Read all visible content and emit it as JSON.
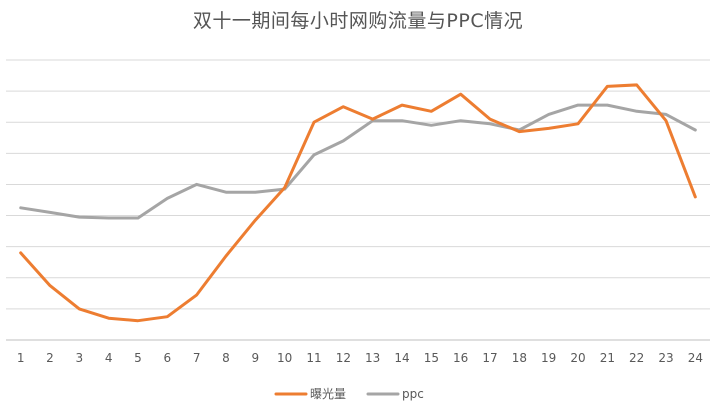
{
  "chart_data": {
    "type": "line",
    "title": "双十一期间每小时网购流量与PPC情况",
    "categories": [
      "1",
      "2",
      "3",
      "4",
      "5",
      "6",
      "7",
      "8",
      "9",
      "10",
      "11",
      "12",
      "13",
      "14",
      "15",
      "16",
      "17",
      "18",
      "19",
      "20",
      "21",
      "22",
      "23",
      "24"
    ],
    "series": [
      {
        "name": "曝光量",
        "color": "#ED7D31",
        "values": [
          2.8,
          1.75,
          1.0,
          0.7,
          0.62,
          0.75,
          1.45,
          2.7,
          3.85,
          4.9,
          7.0,
          7.5,
          7.1,
          7.55,
          7.35,
          7.9,
          7.1,
          6.7,
          6.8,
          6.95,
          8.15,
          8.2,
          7.05,
          4.6
        ]
      },
      {
        "name": "ppc",
        "color": "#A5A5A5",
        "values": [
          4.25,
          4.1,
          3.95,
          3.92,
          3.92,
          4.55,
          5.0,
          4.75,
          4.75,
          4.85,
          5.95,
          6.4,
          7.05,
          7.05,
          6.9,
          7.05,
          6.95,
          6.75,
          7.25,
          7.55,
          7.55,
          7.35,
          7.25,
          6.75
        ]
      }
    ],
    "ylim": [
      0,
      9
    ],
    "grid": true,
    "legend_position": "bottom"
  }
}
